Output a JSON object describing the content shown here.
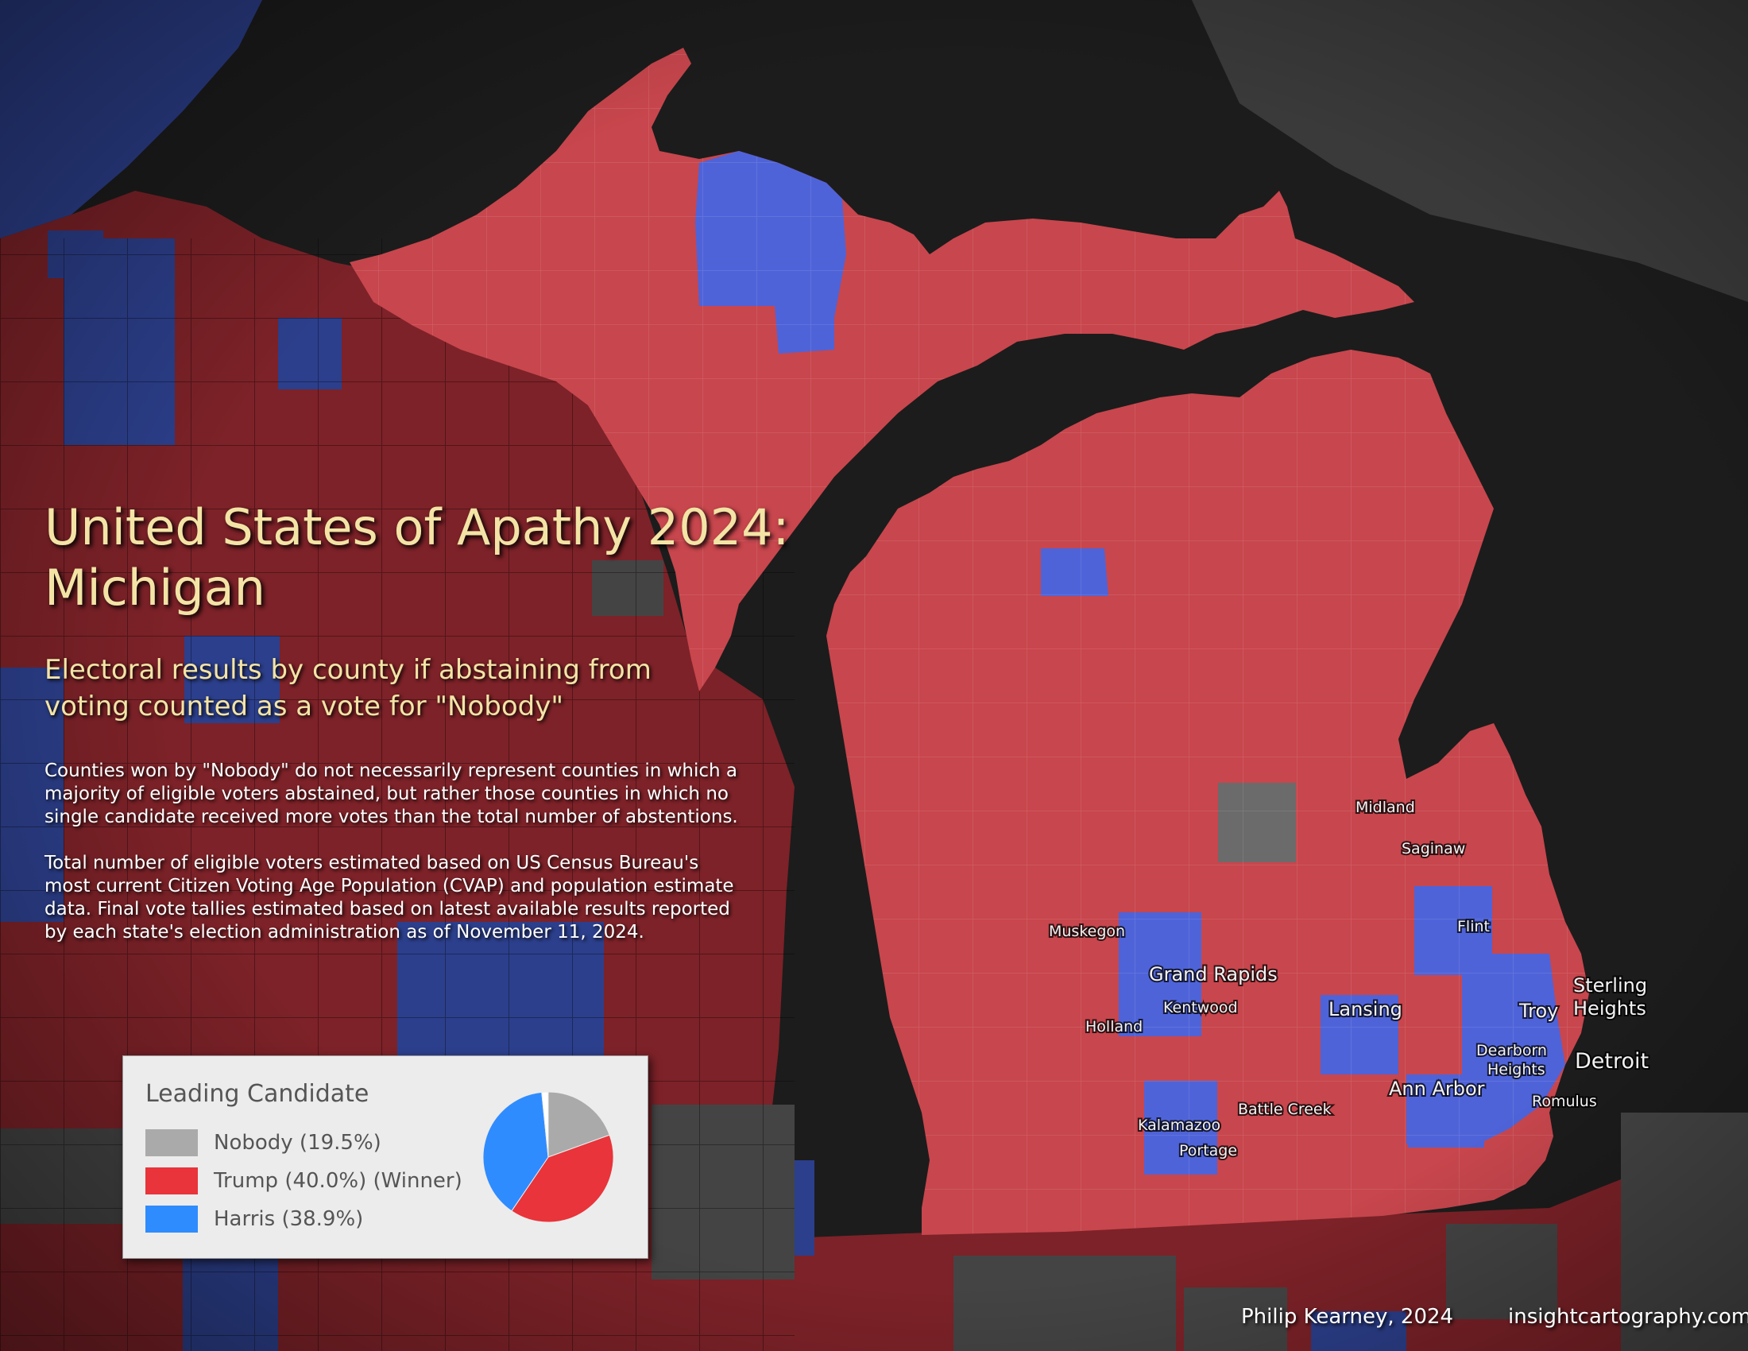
{
  "title": "United States of Apathy 2024: Michigan",
  "title_lines": [
    "United States of Apathy 2024:",
    "Michigan"
  ],
  "subtitle_lines": [
    "Electoral results by county if abstaining from",
    "voting counted as a vote for \"Nobody\""
  ],
  "notes": [
    "Counties won by \"Nobody\" do not necessarily represent counties in which a majority of eligible voters abstained, but rather those counties in which no single candidate received more votes than the total number of abstentions.",
    "Total number of eligible voters estimated based on US Census Bureau's most current Citizen Voting Age Population (CVAP) and population estimate data. Final vote tallies estimated based on latest available results reported by each state's election administration as of November 11, 2024."
  ],
  "legend": {
    "title": "Leading Candidate",
    "items": [
      {
        "label": "Nobody (19.5%)",
        "color": "#aaaaaa",
        "share": 19.5
      },
      {
        "label": "Trump (40.0%) (Winner)",
        "color": "#e8343a",
        "share": 40.0
      },
      {
        "label": "Harris (38.9%)",
        "color": "#2f8cff",
        "share": 38.9
      }
    ]
  },
  "colors": {
    "water": "#1c1c1c",
    "trump_county": "#c8464d",
    "harris_county": "#4f63d9",
    "nobody_county": "#6b6b6b",
    "neighbor_trump": "#7d2228",
    "neighbor_harris": "#2c3f8c",
    "neighbor_nobody": "#444444"
  },
  "cities": [
    "Midland",
    "Saginaw",
    "Flint",
    "Muskegon",
    "Grand Rapids",
    "Kentwood",
    "Holland",
    "Lansing",
    "Troy",
    "Sterling Heights",
    "Dearborn Heights",
    "Detroit",
    "Ann Arbor",
    "Romulus",
    "Battle Creek",
    "Kalamazoo",
    "Portage"
  ],
  "credits": {
    "author": "Philip Kearney, 2024",
    "website": "insightcartography.com"
  }
}
